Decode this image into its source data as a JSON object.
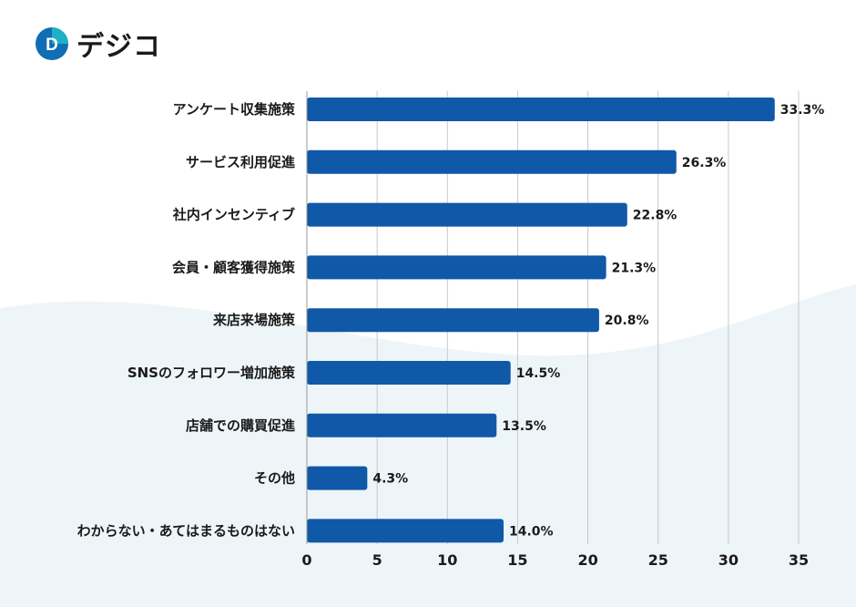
{
  "logo": {
    "text": "デジコ",
    "mark": "D"
  },
  "colors": {
    "bar": "#1058a8",
    "grid": "#c8c8c8",
    "wave": "#eef5f9",
    "logo_mark": "#0f6eb4",
    "logo_accent": "#1fb0c8"
  },
  "chart_data": {
    "type": "bar",
    "orientation": "horizontal",
    "categories": [
      "アンケート収集施策",
      "サービス利用促進",
      "社内インセンティブ",
      "会員・顧客獲得施策",
      "来店来場施策",
      "SNSのフォロワー増加施策",
      "店舗での購買促進",
      "その他",
      "わからない・あてはまるものはない"
    ],
    "values": [
      33.3,
      26.3,
      22.8,
      21.3,
      20.8,
      14.5,
      13.5,
      4.3,
      14.0
    ],
    "value_labels": [
      "33.3%",
      "26.3%",
      "22.8%",
      "21.3%",
      "20.8%",
      "14.5%",
      "13.5%",
      "4.3%",
      "14.0%"
    ],
    "xlim": [
      0,
      35
    ],
    "xticks": [
      0,
      5,
      10,
      15,
      20,
      25,
      30,
      35
    ],
    "grid": true,
    "title": "",
    "xlabel": "",
    "ylabel": ""
  }
}
